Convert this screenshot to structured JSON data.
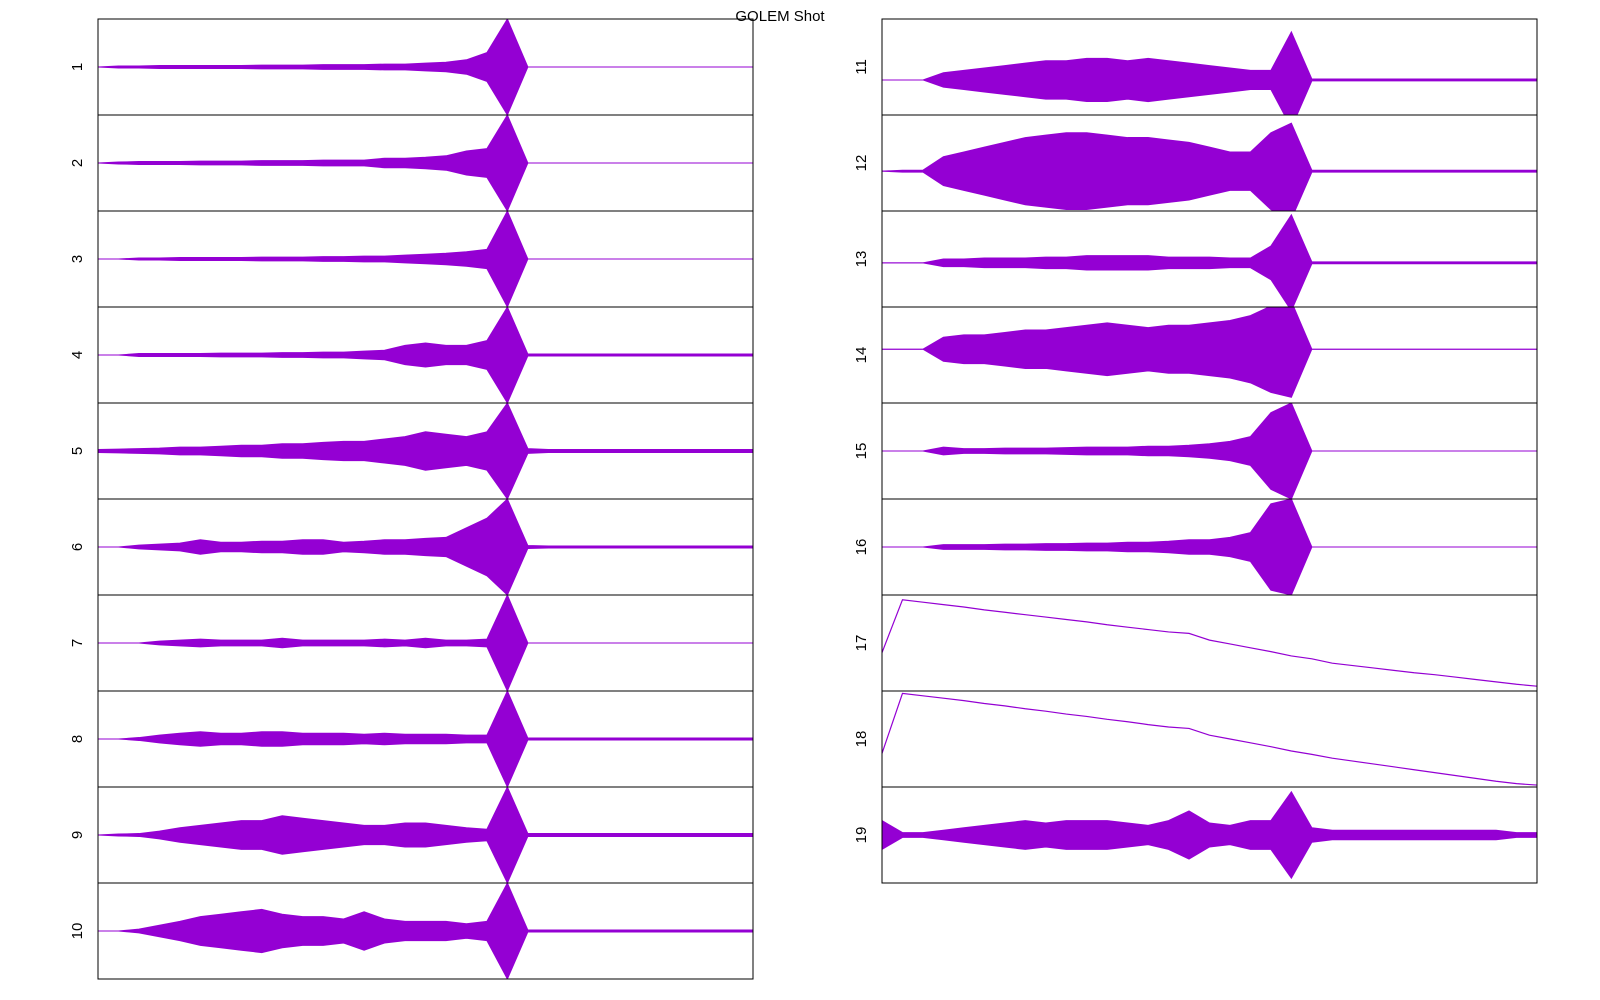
{
  "title": "GOLEM Shot",
  "chart_data": [
    {
      "type": "envelope",
      "ylabel": "1",
      "color": "#9400d3",
      "ylim": [
        -1,
        1
      ],
      "baseline": 0,
      "amplitude": [
        0,
        0.02,
        0.02,
        0.03,
        0.03,
        0.03,
        0.03,
        0.03,
        0.04,
        0.04,
        0.04,
        0.05,
        0.05,
        0.05,
        0.06,
        0.06,
        0.08,
        0.1,
        0.15,
        0.3,
        1,
        0,
        0,
        0,
        0,
        0,
        0,
        0,
        0,
        0,
        0,
        0,
        0
      ]
    },
    {
      "type": "envelope",
      "ylabel": "2",
      "color": "#9400d3",
      "ylim": [
        -1,
        1
      ],
      "baseline": 0,
      "amplitude": [
        0,
        0.02,
        0.03,
        0.03,
        0.03,
        0.04,
        0.04,
        0.04,
        0.05,
        0.05,
        0.05,
        0.06,
        0.06,
        0.06,
        0.1,
        0.1,
        0.12,
        0.15,
        0.25,
        0.3,
        1,
        0,
        0,
        0,
        0,
        0,
        0,
        0,
        0,
        0,
        0,
        0,
        0
      ]
    },
    {
      "type": "envelope",
      "ylabel": "3",
      "color": "#9400d3",
      "ylim": [
        -1,
        1
      ],
      "baseline": 0,
      "amplitude": [
        0,
        0,
        0.02,
        0.02,
        0.03,
        0.03,
        0.03,
        0.03,
        0.04,
        0.04,
        0.04,
        0.05,
        0.05,
        0.06,
        0.06,
        0.08,
        0.1,
        0.12,
        0.15,
        0.2,
        1,
        0,
        0,
        0,
        0,
        0,
        0,
        0,
        0,
        0,
        0,
        0,
        0
      ]
    },
    {
      "type": "envelope",
      "ylabel": "4",
      "color": "#9400d3",
      "ylim": [
        -1,
        1
      ],
      "baseline": 0,
      "amplitude": [
        0,
        0,
        0.03,
        0.03,
        0.03,
        0.03,
        0.04,
        0.04,
        0.04,
        0.05,
        0.05,
        0.06,
        0.06,
        0.08,
        0.1,
        0.2,
        0.25,
        0.2,
        0.2,
        0.3,
        1,
        0.02,
        0.02,
        0.02,
        0.02,
        0.02,
        0.02,
        0.02,
        0.02,
        0.02,
        0.02,
        0.02,
        0.02
      ]
    },
    {
      "type": "envelope",
      "ylabel": "5",
      "color": "#9400d3",
      "ylim": [
        -1,
        1
      ],
      "baseline": 0,
      "amplitude": [
        0.03,
        0.04,
        0.05,
        0.06,
        0.08,
        0.08,
        0.1,
        0.12,
        0.12,
        0.15,
        0.15,
        0.18,
        0.2,
        0.2,
        0.25,
        0.3,
        0.4,
        0.35,
        0.3,
        0.4,
        1,
        0.05,
        0.03,
        0.03,
        0.03,
        0.03,
        0.03,
        0.03,
        0.03,
        0.03,
        0.03,
        0.03,
        0.03
      ]
    },
    {
      "type": "envelope",
      "ylabel": "6",
      "color": "#9400d3",
      "ylim": [
        -1,
        1
      ],
      "baseline": 0,
      "amplitude": [
        0,
        0,
        0.04,
        0.06,
        0.08,
        0.15,
        0.1,
        0.1,
        0.12,
        0.12,
        0.15,
        0.15,
        0.1,
        0.12,
        0.15,
        0.15,
        0.18,
        0.2,
        0.4,
        0.6,
        1,
        0.03,
        0.02,
        0.02,
        0.02,
        0.02,
        0.02,
        0.02,
        0.02,
        0.02,
        0.02,
        0.02,
        0.02
      ]
    },
    {
      "type": "envelope",
      "ylabel": "7",
      "color": "#9400d3",
      "ylim": [
        -1,
        1
      ],
      "baseline": 0,
      "amplitude": [
        0,
        0,
        0,
        0.04,
        0.06,
        0.08,
        0.06,
        0.06,
        0.06,
        0.1,
        0.06,
        0.06,
        0.06,
        0.06,
        0.08,
        0.06,
        0.1,
        0.06,
        0.06,
        0.08,
        1,
        0,
        0,
        0,
        0,
        0,
        0,
        0,
        0,
        0,
        0,
        0,
        0
      ]
    },
    {
      "type": "envelope",
      "ylabel": "8",
      "color": "#9400d3",
      "ylim": [
        -1,
        1
      ],
      "baseline": 0,
      "amplitude": [
        0,
        0,
        0.03,
        0.08,
        0.12,
        0.15,
        0.12,
        0.12,
        0.15,
        0.15,
        0.12,
        0.12,
        0.12,
        0.1,
        0.12,
        0.1,
        0.1,
        0.1,
        0.08,
        0.08,
        1,
        0.02,
        0.02,
        0.02,
        0.02,
        0.02,
        0.02,
        0.02,
        0.02,
        0.02,
        0.02,
        0.02,
        0.02
      ]
    },
    {
      "type": "envelope",
      "ylabel": "9",
      "color": "#9400d3",
      "ylim": [
        -1,
        1
      ],
      "baseline": 0,
      "amplitude": [
        0,
        0.02,
        0.03,
        0.08,
        0.15,
        0.2,
        0.25,
        0.3,
        0.3,
        0.4,
        0.35,
        0.3,
        0.25,
        0.2,
        0.2,
        0.25,
        0.25,
        0.2,
        0.15,
        0.12,
        1,
        0.03,
        0.03,
        0.03,
        0.03,
        0.03,
        0.03,
        0.03,
        0.03,
        0.03,
        0.03,
        0.03,
        0.03
      ]
    },
    {
      "type": "envelope",
      "ylabel": "10",
      "color": "#9400d3",
      "ylim": [
        -1,
        1
      ],
      "baseline": 0,
      "amplitude": [
        0,
        0,
        0.04,
        0.12,
        0.2,
        0.3,
        0.35,
        0.4,
        0.45,
        0.35,
        0.3,
        0.3,
        0.25,
        0.4,
        0.25,
        0.2,
        0.2,
        0.2,
        0.15,
        0.2,
        1,
        0.02,
        0.02,
        0.02,
        0.02,
        0.02,
        0.02,
        0.02,
        0.02,
        0.02,
        0.02,
        0.02,
        0.02
      ]
    },
    {
      "type": "envelope",
      "ylabel": "11",
      "color": "#9400d3",
      "ylim": [
        -1,
        1
      ],
      "baseline": -0.27,
      "amplitude": [
        0,
        0,
        0,
        0.15,
        0.2,
        0.25,
        0.3,
        0.35,
        0.4,
        0.4,
        0.45,
        0.45,
        0.4,
        0.45,
        0.4,
        0.35,
        0.3,
        0.25,
        0.2,
        0.2,
        1,
        0.02,
        0.02,
        0.02,
        0.02,
        0.02,
        0.02,
        0.02,
        0.02,
        0.02,
        0.02,
        0.02,
        0.02
      ]
    },
    {
      "type": "envelope",
      "ylabel": "12",
      "color": "#9400d3",
      "ylim": [
        -1,
        1
      ],
      "baseline": -0.17,
      "amplitude": [
        0,
        0.02,
        0.02,
        0.3,
        0.4,
        0.5,
        0.6,
        0.7,
        0.75,
        0.8,
        0.8,
        0.75,
        0.7,
        0.7,
        0.65,
        0.6,
        0.5,
        0.4,
        0.4,
        0.8,
        1,
        0.02,
        0.02,
        0.02,
        0.02,
        0.02,
        0.02,
        0.02,
        0.02,
        0.02,
        0.02,
        0.02,
        0.02
      ]
    },
    {
      "type": "envelope",
      "ylabel": "13",
      "color": "#9400d3",
      "ylim": [
        -1,
        1
      ],
      "baseline": -0.08,
      "amplitude": [
        0,
        0,
        0,
        0.08,
        0.08,
        0.1,
        0.1,
        0.1,
        0.12,
        0.12,
        0.15,
        0.15,
        0.15,
        0.15,
        0.12,
        0.12,
        0.12,
        0.1,
        0.1,
        0.35,
        1,
        0.02,
        0.02,
        0.02,
        0.02,
        0.02,
        0.02,
        0.02,
        0.02,
        0.02,
        0.02,
        0.02,
        0.02
      ]
    },
    {
      "type": "envelope",
      "ylabel": "14",
      "color": "#9400d3",
      "ylim": [
        -1,
        1
      ],
      "baseline": 0.12,
      "amplitude": [
        0,
        0,
        0,
        0.25,
        0.3,
        0.3,
        0.35,
        0.4,
        0.4,
        0.45,
        0.5,
        0.55,
        0.5,
        0.45,
        0.5,
        0.5,
        0.55,
        0.6,
        0.7,
        0.9,
        1,
        0,
        0,
        0,
        0,
        0,
        0,
        0,
        0,
        0,
        0,
        0,
        0
      ]
    },
    {
      "type": "envelope",
      "ylabel": "15",
      "color": "#9400d3",
      "ylim": [
        -1,
        1
      ],
      "baseline": 0,
      "amplitude": [
        0,
        0,
        0,
        0.08,
        0.05,
        0.05,
        0.06,
        0.06,
        0.06,
        0.07,
        0.08,
        0.08,
        0.08,
        0.1,
        0.1,
        0.12,
        0.15,
        0.2,
        0.3,
        0.8,
        1,
        0,
        0,
        0,
        0,
        0,
        0,
        0,
        0,
        0,
        0,
        0,
        0
      ]
    },
    {
      "type": "envelope",
      "ylabel": "16",
      "color": "#9400d3",
      "ylim": [
        -1,
        1
      ],
      "baseline": 0,
      "amplitude": [
        0,
        0,
        0,
        0.05,
        0.05,
        0.05,
        0.06,
        0.06,
        0.07,
        0.07,
        0.08,
        0.08,
        0.1,
        0.1,
        0.12,
        0.15,
        0.15,
        0.2,
        0.3,
        0.9,
        1,
        0,
        0,
        0,
        0,
        0,
        0,
        0,
        0,
        0,
        0,
        0,
        0
      ]
    },
    {
      "type": "line",
      "ylabel": "17",
      "color": "#9400d3",
      "ylim": [
        -1,
        1
      ],
      "values": [
        -0.2,
        0.9,
        0.85,
        0.8,
        0.75,
        0.69,
        0.64,
        0.59,
        0.54,
        0.49,
        0.44,
        0.38,
        0.33,
        0.28,
        0.23,
        0.2,
        0.06,
        -0.02,
        -0.1,
        -0.18,
        -0.27,
        -0.33,
        -0.42,
        -0.47,
        -0.52,
        -0.57,
        -0.62,
        -0.66,
        -0.71,
        -0.76,
        -0.81,
        -0.86,
        -0.9
      ]
    },
    {
      "type": "line",
      "ylabel": "18",
      "color": "#9400d3",
      "ylim": [
        -1,
        1
      ],
      "values": [
        -0.3,
        0.95,
        0.9,
        0.85,
        0.8,
        0.74,
        0.69,
        0.63,
        0.58,
        0.52,
        0.47,
        0.41,
        0.36,
        0.3,
        0.25,
        0.22,
        0.08,
        0,
        -0.08,
        -0.16,
        -0.25,
        -0.32,
        -0.4,
        -0.46,
        -0.52,
        -0.58,
        -0.64,
        -0.7,
        -0.76,
        -0.82,
        -0.88,
        -0.93,
        -0.96
      ]
    },
    {
      "type": "envelope",
      "ylabel": "19",
      "color": "#9400d3",
      "ylim": [
        -1,
        1
      ],
      "baseline": 0,
      "amplitude": [
        0.3,
        0.05,
        0.05,
        0.1,
        0.15,
        0.2,
        0.25,
        0.3,
        0.25,
        0.3,
        0.3,
        0.3,
        0.25,
        0.2,
        0.3,
        0.5,
        0.25,
        0.2,
        0.3,
        0.3,
        0.9,
        0.15,
        0.1,
        0.1,
        0.1,
        0.1,
        0.1,
        0.1,
        0.1,
        0.1,
        0.1,
        0.05,
        0.05
      ]
    }
  ]
}
